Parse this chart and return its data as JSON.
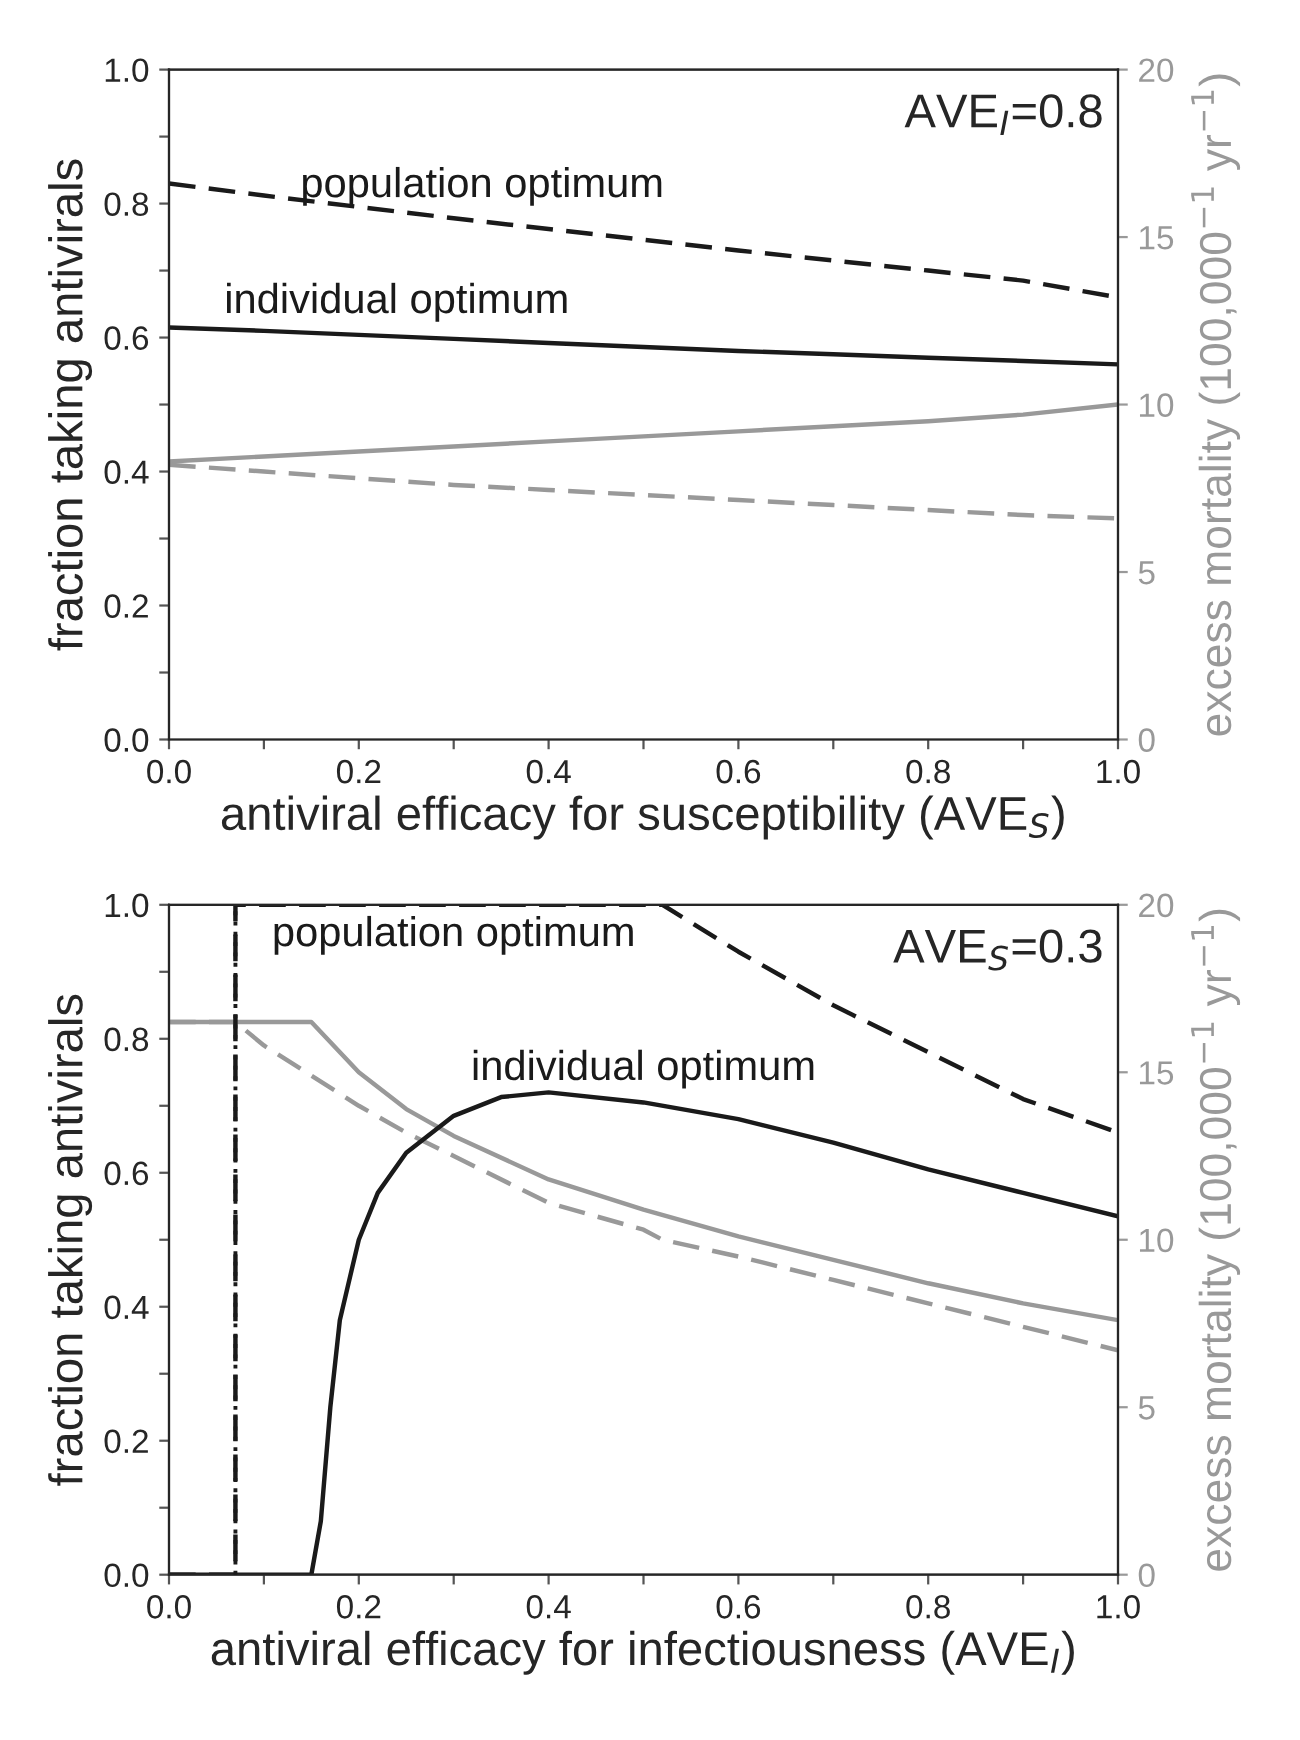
{
  "chart_data": [
    {
      "type": "line",
      "xlabel": "antiviral efficacy for susceptibility (AVE$_{S}$)",
      "ylabel": "fraction taking antivirals",
      "y2label": "excess mortality (100,000$^{−1}$ yr$^{−1}$)",
      "xlim": [
        0,
        1
      ],
      "ylim": [
        0,
        1
      ],
      "y2lim": [
        0,
        20
      ],
      "xticks": [
        {
          "value": 0,
          "label": "0.0"
        },
        {
          "value": 0.1,
          "label": null
        },
        {
          "value": 0.2,
          "label": "0.2"
        },
        {
          "value": 0.3,
          "label": null
        },
        {
          "value": 0.4,
          "label": "0.4"
        },
        {
          "value": 0.5,
          "label": null
        },
        {
          "value": 0.6,
          "label": "0.6"
        },
        {
          "value": 0.7,
          "label": null
        },
        {
          "value": 0.8,
          "label": "0.8"
        },
        {
          "value": 0.9,
          "label": null
        },
        {
          "value": 1,
          "label": "1.0"
        }
      ],
      "yticks": [
        {
          "value": 0,
          "label": "0.0"
        },
        {
          "value": 0.1,
          "label": null
        },
        {
          "value": 0.2,
          "label": "0.2"
        },
        {
          "value": 0.3,
          "label": null
        },
        {
          "value": 0.4,
          "label": "0.4"
        },
        {
          "value": 0.5,
          "label": null
        },
        {
          "value": 0.6,
          "label": "0.6"
        },
        {
          "value": 0.7,
          "label": null
        },
        {
          "value": 0.8,
          "label": "0.8"
        },
        {
          "value": 0.9,
          "label": null
        },
        {
          "value": 1,
          "label": "1.0"
        }
      ],
      "y2ticks": [
        0,
        5,
        10,
        15,
        20
      ],
      "grid": false,
      "annotations": [
        "AVE$_{I}$=0.8",
        {
          "text": "population optimum",
          "x": 0.33,
          "y": 0.776
        },
        {
          "text": "individual optimum",
          "x": 0.24,
          "y": 0.603
        }
      ],
      "series": [
        {
          "color": "#1a1a1a",
          "line_style": "dashed",
          "x": [
            0,
            0.1,
            0.2,
            0.3,
            0.4,
            0.5,
            0.6,
            0.7,
            0.8,
            0.9,
            1.0
          ],
          "values": [
            0.83,
            0.812,
            0.795,
            0.778,
            0.762,
            0.746,
            0.73,
            0.715,
            0.7,
            0.685,
            0.66
          ]
        },
        {
          "color": "#1a1a1a",
          "line_style": "solid",
          "x": [
            0,
            0.1,
            0.2,
            0.3,
            0.4,
            0.5,
            0.6,
            0.7,
            0.8,
            0.9,
            1.0
          ],
          "values": [
            0.615,
            0.61,
            0.604,
            0.598,
            0.592,
            0.586,
            0.58,
            0.575,
            0.57,
            0.565,
            0.56
          ]
        },
        {
          "color": "#999999",
          "line_style": "solid",
          "axis": "y2",
          "x": [
            0,
            0.1,
            0.2,
            0.3,
            0.4,
            0.5,
            0.6,
            0.7,
            0.8,
            0.9,
            1.0
          ],
          "values": [
            8.3,
            8.45,
            8.6,
            8.75,
            8.9,
            9.05,
            9.2,
            9.35,
            9.5,
            9.7,
            10.0
          ]
        },
        {
          "color": "#999999",
          "line_style": "dashed",
          "axis": "y2",
          "x": [
            0,
            0.1,
            0.2,
            0.3,
            0.4,
            0.5,
            0.6,
            0.7,
            0.8,
            0.9,
            1.0
          ],
          "values": [
            8.2,
            8.0,
            7.8,
            7.6,
            7.45,
            7.3,
            7.15,
            7.0,
            6.85,
            6.7,
            6.6
          ]
        }
      ]
    },
    {
      "type": "line",
      "xlabel": "antiviral efficacy for infectiousness (AVE$_{I}$)",
      "ylabel": "fraction taking antivirals",
      "y2label": "excess mortality (100,000$^{−1}$ yr$^{−1}$)",
      "xlim": [
        0,
        1
      ],
      "ylim": [
        0,
        1
      ],
      "y2lim": [
        0,
        20
      ],
      "xticks": [
        {
          "value": 0,
          "label": "0.0"
        },
        {
          "value": 0.1,
          "label": null
        },
        {
          "value": 0.2,
          "label": "0.2"
        },
        {
          "value": 0.3,
          "label": null
        },
        {
          "value": 0.4,
          "label": "0.4"
        },
        {
          "value": 0.5,
          "label": null
        },
        {
          "value": 0.6,
          "label": "0.6"
        },
        {
          "value": 0.7,
          "label": null
        },
        {
          "value": 0.8,
          "label": "0.8"
        },
        {
          "value": 0.9,
          "label": null
        },
        {
          "value": 1,
          "label": "1.0"
        }
      ],
      "yticks": [
        {
          "value": 0,
          "label": "0.0"
        },
        {
          "value": 0.1,
          "label": null
        },
        {
          "value": 0.2,
          "label": "0.2"
        },
        {
          "value": 0.3,
          "label": null
        },
        {
          "value": 0.4,
          "label": "0.4"
        },
        {
          "value": 0.5,
          "label": null
        },
        {
          "value": 0.6,
          "label": "0.6"
        },
        {
          "value": 0.7,
          "label": null
        },
        {
          "value": 0.8,
          "label": "0.8"
        },
        {
          "value": 0.9,
          "label": null
        },
        {
          "value": 1,
          "label": "1.0"
        }
      ],
      "y2ticks": [
        0,
        5,
        10,
        15,
        20
      ],
      "grid": false,
      "ref_lines": [
        {
          "axis": "x",
          "value": 0.07,
          "color": "#1a1a1a",
          "line_style": "dotted"
        }
      ],
      "annotations": [
        "AVE$_{S}$=0.3",
        {
          "text": "population optimum",
          "x": 0.3,
          "y": 1.0
        },
        {
          "text": "individual optimum",
          "x": 0.5,
          "y": 0.705
        }
      ],
      "series": [
        {
          "color": "#1a1a1a",
          "line_style": "dashed",
          "x": [
            0,
            0.07,
            0.07,
            0.52,
            0.6,
            0.7,
            0.8,
            0.9,
            1.0
          ],
          "values": [
            0,
            0,
            1,
            1,
            0.93,
            0.85,
            0.78,
            0.71,
            0.66
          ]
        },
        {
          "color": "#1a1a1a",
          "line_style": "solid",
          "x": [
            0,
            0.15,
            0.16,
            0.17,
            0.18,
            0.2,
            0.22,
            0.25,
            0.3,
            0.35,
            0.4,
            0.5,
            0.6,
            0.7,
            0.8,
            0.9,
            1.0
          ],
          "values": [
            0,
            0,
            0.08,
            0.25,
            0.38,
            0.5,
            0.57,
            0.63,
            0.685,
            0.713,
            0.72,
            0.705,
            0.68,
            0.645,
            0.605,
            0.57,
            0.535
          ]
        },
        {
          "color": "#999999",
          "line_style": "solid",
          "axis": "y2",
          "x": [
            0,
            0.15,
            0.2,
            0.25,
            0.3,
            0.4,
            0.5,
            0.6,
            0.7,
            0.8,
            0.9,
            1.0
          ],
          "values": [
            16.5,
            16.5,
            15.0,
            13.9,
            13.1,
            11.8,
            10.9,
            10.1,
            9.4,
            8.7,
            8.1,
            7.6
          ]
        },
        {
          "color": "#999999",
          "line_style": "dashed",
          "axis": "y2",
          "x": [
            0,
            0.07,
            0.1,
            0.15,
            0.2,
            0.25,
            0.3,
            0.4,
            0.5,
            0.52,
            0.6,
            0.7,
            0.8,
            0.9,
            1.0
          ],
          "values": [
            16.5,
            16.5,
            15.8,
            14.9,
            14.0,
            13.2,
            12.5,
            11.1,
            10.3,
            10.0,
            9.5,
            8.8,
            8.1,
            7.4,
            6.7
          ]
        }
      ]
    }
  ]
}
